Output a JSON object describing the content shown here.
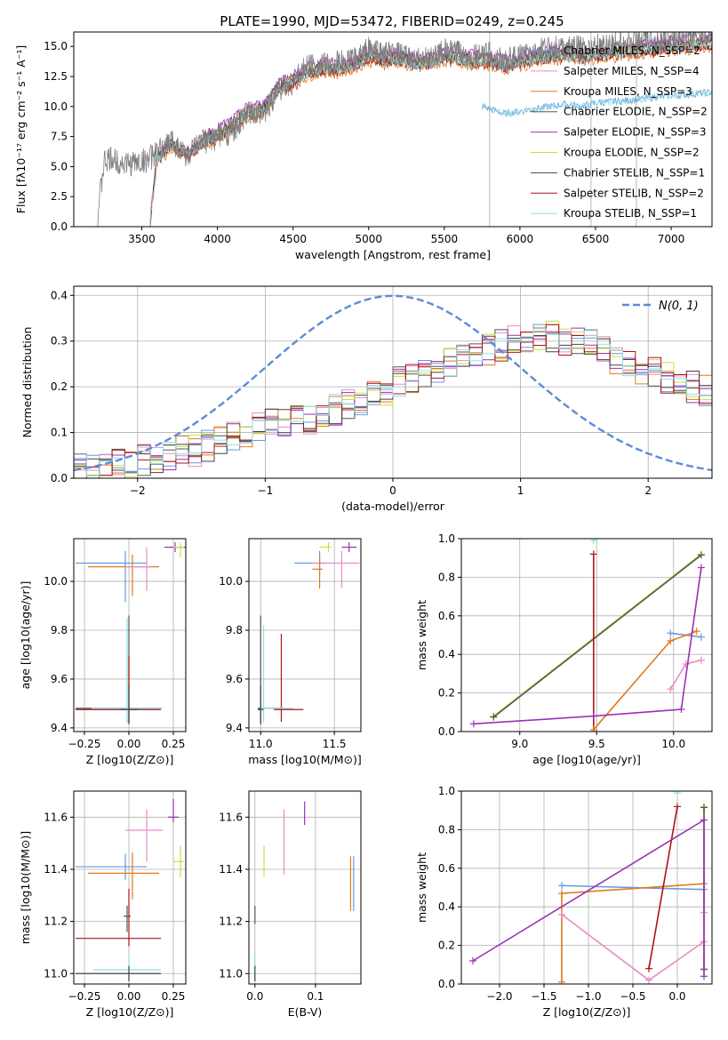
{
  "title": "PLATE=1990, MJD=53472, FIBERID=0249, z=0.245",
  "colors": {
    "chabrier_miles": "#6699dd",
    "salpeter_miles": "#e98cc6",
    "kroupa_miles": "#e07a1f",
    "chabrier_elodie": "#555555",
    "salpeter_elodie": "#9b30b5",
    "kroupa_elodie": "#c8e03c",
    "chabrier_stelib": "#444444",
    "salpeter_stelib": "#b0101a",
    "kroupa_stelib": "#8ee0e6",
    "data": "#808080",
    "gaussian": "#5b8bd8"
  },
  "chart_data": [
    {
      "type": "line",
      "xlabel": "wavelength [Angstrom, rest frame]",
      "ylabel": "Flux [fλ10⁻¹⁷ erg cm⁻² s⁻¹ A⁻¹]",
      "xlim": [
        3050,
        7270
      ],
      "ylim": [
        0,
        16.2
      ],
      "xticks": [
        "3500",
        "4000",
        "4500",
        "5000",
        "5500",
        "6000",
        "6500",
        "7000"
      ],
      "yticks": [
        "0.0",
        "2.5",
        "5.0",
        "7.5",
        "10.0",
        "12.5",
        "15.0"
      ],
      "vlines": [
        5800,
        6470,
        6770
      ],
      "legend": [
        "Chabrier MILES, N_SSP=2",
        "Salpeter MILES, N_SSP=4",
        "Kroupa MILES, N_SSP=3",
        "Chabrier ELODIE, N_SSP=2",
        "Salpeter ELODIE, N_SSP=3",
        "Kroupa ELODIE, N_SSP=2",
        "Chabrier STELIB, N_SSP=1",
        "Salpeter STELIB, N_SSP=2",
        "Kroupa STELIB, N_SSP=1"
      ],
      "data_series": {
        "x": [
          3200,
          3250,
          3300,
          3400,
          3500,
          3600,
          3700,
          3800,
          3900,
          4000,
          4100,
          4200,
          4300,
          4400,
          4500,
          4600,
          4700,
          4800,
          4900,
          5000,
          5100,
          5200,
          5300,
          5400,
          5500,
          5600,
          5700,
          5800,
          5900,
          6000,
          6100,
          6200,
          6300,
          6400,
          6500,
          6600,
          6700,
          6800,
          6900,
          7000,
          7100,
          7270
        ],
        "y": [
          0,
          5.3,
          5.6,
          5.2,
          5.4,
          6.0,
          7.2,
          5.8,
          7.0,
          7.5,
          8.0,
          9.4,
          9.2,
          11.5,
          12.0,
          13.5,
          13.4,
          13.6,
          13.8,
          14.8,
          14.4,
          14.3,
          13.8,
          14.0,
          14.6,
          14.4,
          14.1,
          14.3,
          13.7,
          14.2,
          14.5,
          14.8,
          14.9,
          14.8,
          15.0,
          15.2,
          15.3,
          15.5,
          15.5,
          15.8,
          15.9,
          16.2
        ]
      },
      "model_series": {
        "x": [
          3550,
          3600,
          3700,
          3800,
          3900,
          4000,
          4100,
          4200,
          4300,
          4400,
          4500,
          4600,
          4700,
          4800,
          4900,
          5000,
          5100,
          5200,
          5300,
          5400,
          5500,
          5600,
          5700,
          5800,
          5900,
          6000,
          6100,
          6200,
          6300,
          6400,
          6500,
          6600,
          6700,
          6800,
          6900,
          7000,
          7100,
          7270
        ],
        "y": [
          0,
          5.6,
          6.8,
          5.9,
          7.0,
          7.6,
          8.3,
          9.4,
          9.6,
          11.4,
          12.0,
          12.8,
          13.1,
          13.0,
          13.4,
          14.0,
          13.8,
          13.9,
          13.5,
          13.6,
          14.0,
          13.9,
          13.7,
          13.7,
          13.3,
          13.6,
          13.9,
          14.1,
          14.2,
          14.0,
          14.2,
          14.3,
          14.4,
          14.6,
          14.7,
          14.9,
          15.0,
          15.2
        ]
      },
      "low_model_series": {
        "x": [
          5700,
          5800,
          5900,
          6000,
          6100,
          6200,
          6300,
          6400,
          6500,
          6600,
          6700,
          6800,
          6900,
          7000,
          7100,
          7270
        ],
        "y": [
          10.2,
          9.8,
          9.4,
          9.6,
          9.8,
          10.0,
          10.2,
          10.0,
          10.3,
          10.4,
          10.5,
          10.6,
          10.8,
          10.9,
          11.0,
          11.2
        ]
      }
    },
    {
      "type": "bar",
      "xlabel": "(data-model)/error",
      "ylabel": "Normed distribution",
      "xlim": [
        -2.5,
        2.5
      ],
      "ylim": [
        0,
        0.42
      ],
      "xticks": [
        "−2",
        "−1",
        "0",
        "1",
        "2"
      ],
      "yticks": [
        "0.0",
        "0.1",
        "0.2",
        "0.3",
        "0.4"
      ],
      "gaussian_label": "N(0, 1)",
      "bin_edges_start": -2.5,
      "bin_width": 0.1,
      "histogram_base": [
        0.02,
        0.02,
        0.03,
        0.03,
        0.03,
        0.04,
        0.04,
        0.05,
        0.06,
        0.06,
        0.07,
        0.08,
        0.09,
        0.1,
        0.11,
        0.12,
        0.12,
        0.13,
        0.13,
        0.14,
        0.15,
        0.16,
        0.17,
        0.18,
        0.19,
        0.21,
        0.22,
        0.23,
        0.24,
        0.25,
        0.26,
        0.27,
        0.28,
        0.29,
        0.3,
        0.3,
        0.31,
        0.31,
        0.3,
        0.3,
        0.29,
        0.28,
        0.26,
        0.25,
        0.24,
        0.23,
        0.22,
        0.21,
        0.2,
        0.19
      ]
    },
    {
      "type": "scatter",
      "xlabel": "Z [log10(Z/Z⊙)]",
      "ylabel": "age  [log10(age/yr)]",
      "xlim": [
        -0.31,
        0.32
      ],
      "ylim": [
        9.385,
        10.175
      ],
      "xticks": [
        "−0.25",
        "0.00",
        "0.25"
      ],
      "yticks": [
        "9.4",
        "9.6",
        "9.8",
        "10.0"
      ]
    },
    {
      "type": "scatter",
      "xlabel": "mass [log10(M/M⊙)]",
      "ylabel": "",
      "xlim": [
        10.92,
        11.68
      ],
      "ylim": [
        9.385,
        10.175
      ],
      "xticks": [
        "11.0",
        "11.5"
      ],
      "yticks": [
        "9.4",
        "9.6",
        "9.8",
        "10.0"
      ]
    },
    {
      "type": "line",
      "xlabel": "age  [log10(age/yr)]",
      "ylabel": "mass weight",
      "xlim": [
        8.62,
        10.25
      ],
      "ylim": [
        0,
        1.0
      ],
      "xticks": [
        "9.0",
        "9.5",
        "10.0"
      ],
      "yticks": [
        "0.0",
        "0.2",
        "0.4",
        "0.6",
        "0.8",
        "1.0"
      ]
    },
    {
      "type": "scatter",
      "xlabel": "Z [log10(Z/Z⊙)]",
      "ylabel": "mass [log10(M/M⊙)]",
      "xlim": [
        -0.31,
        0.32
      ],
      "ylim": [
        10.96,
        11.7
      ],
      "xticks": [
        "−0.25",
        "0.00",
        "0.25"
      ],
      "yticks": [
        "11.0",
        "11.2",
        "11.4",
        "11.6"
      ]
    },
    {
      "type": "scatter",
      "xlabel": "E(B-V)",
      "ylabel": "",
      "xlim": [
        -0.01,
        0.175
      ],
      "ylim": [
        10.96,
        11.7
      ],
      "xticks": [
        "0.0",
        "0.1"
      ],
      "yticks": [
        "11.0",
        "11.2",
        "11.4",
        "11.6"
      ]
    },
    {
      "type": "line",
      "xlabel": "Z [log10(Z/Z⊙)]",
      "ylabel": "mass weight",
      "xlim": [
        -2.43,
        0.39
      ],
      "ylim": [
        0,
        1.0
      ],
      "xticks": [
        "−2.0",
        "−1.5",
        "−1.0",
        "−0.5",
        "0.0"
      ],
      "yticks": [
        "0.0",
        "0.2",
        "0.4",
        "0.6",
        "0.8",
        "1.0"
      ]
    }
  ]
}
